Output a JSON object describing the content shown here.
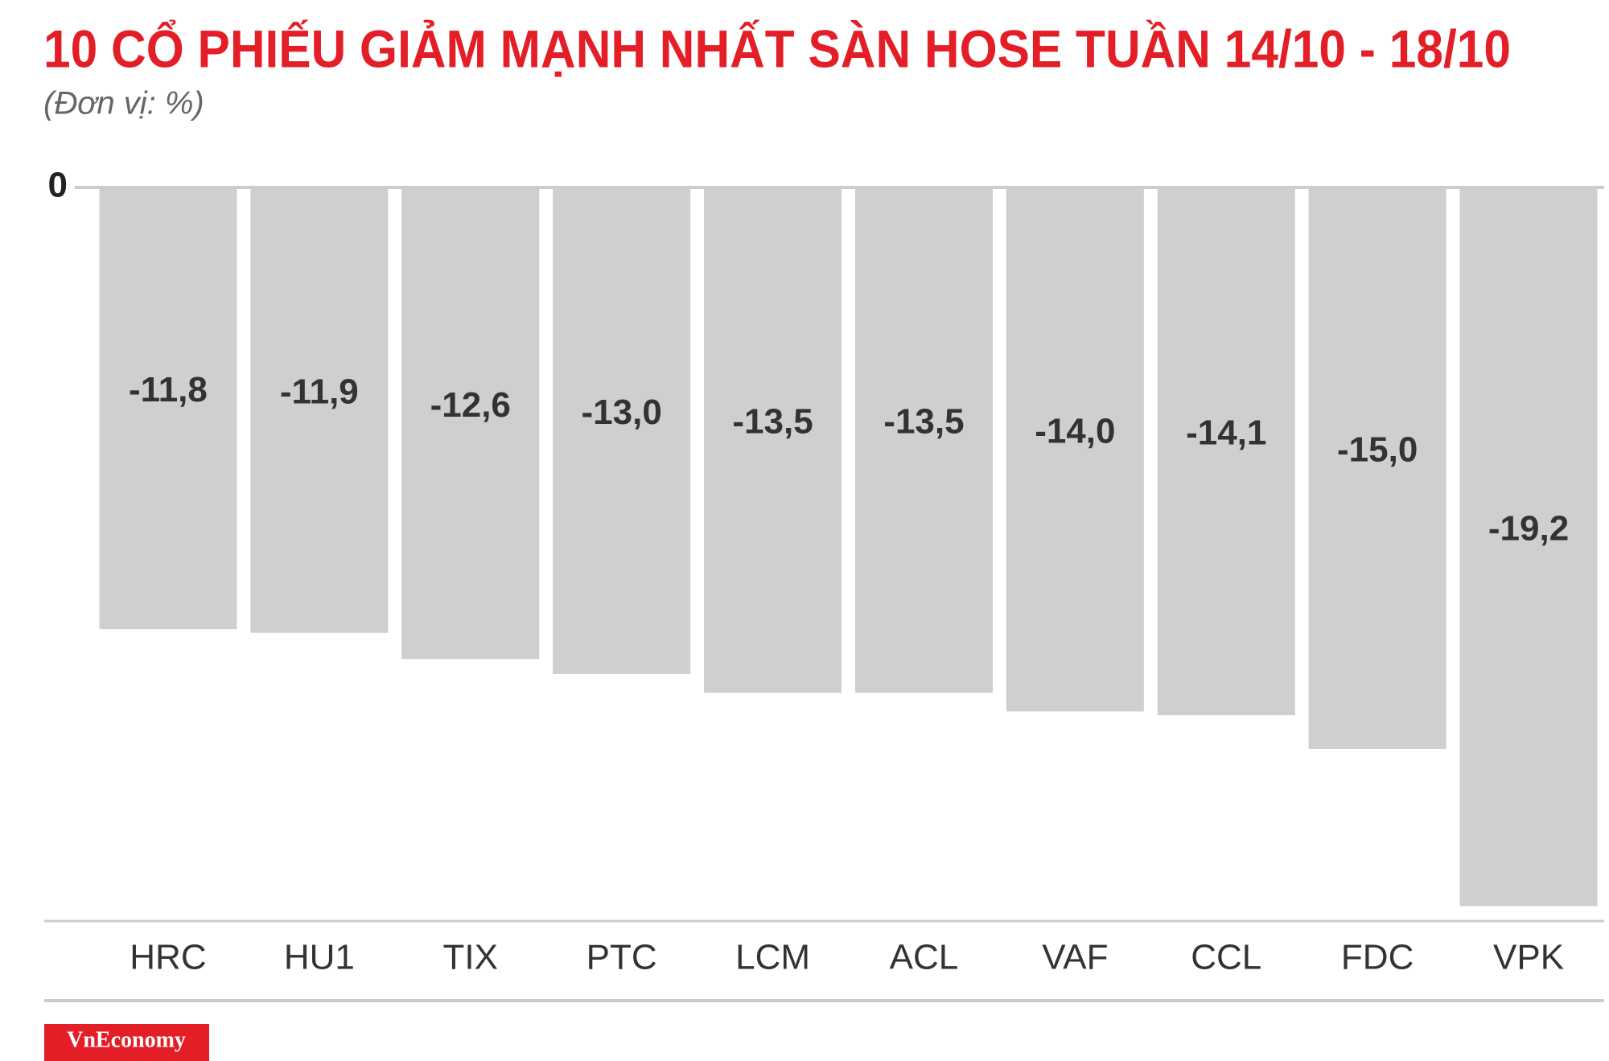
{
  "chart_data": {
    "type": "bar",
    "title": "10 CỔ PHIẾU GIẢM MẠNH NHẤT SÀN HOSE TUẦN 14/10 - 18/10",
    "subtitle": "(Đơn vị: %)",
    "categories": [
      "HRC",
      "HU1",
      "TIX",
      "PTC",
      "LCM",
      "ACL",
      "VAF",
      "CCL",
      "FDC",
      "VPK"
    ],
    "values": [
      -11.8,
      -11.9,
      -12.6,
      -13.0,
      -13.5,
      -13.5,
      -14.0,
      -14.1,
      -15.0,
      -19.2
    ],
    "value_labels": [
      "-11,8",
      "-11,9",
      "-12,6",
      "-13,0",
      "-13,5",
      "-13,5",
      "-14,0",
      "-14,1",
      "-15,0",
      "-19,2"
    ],
    "color": "#cfced0",
    "ylim": [
      -19.6,
      0
    ],
    "yticks": [
      0
    ],
    "logo": "VnEconomy"
  }
}
